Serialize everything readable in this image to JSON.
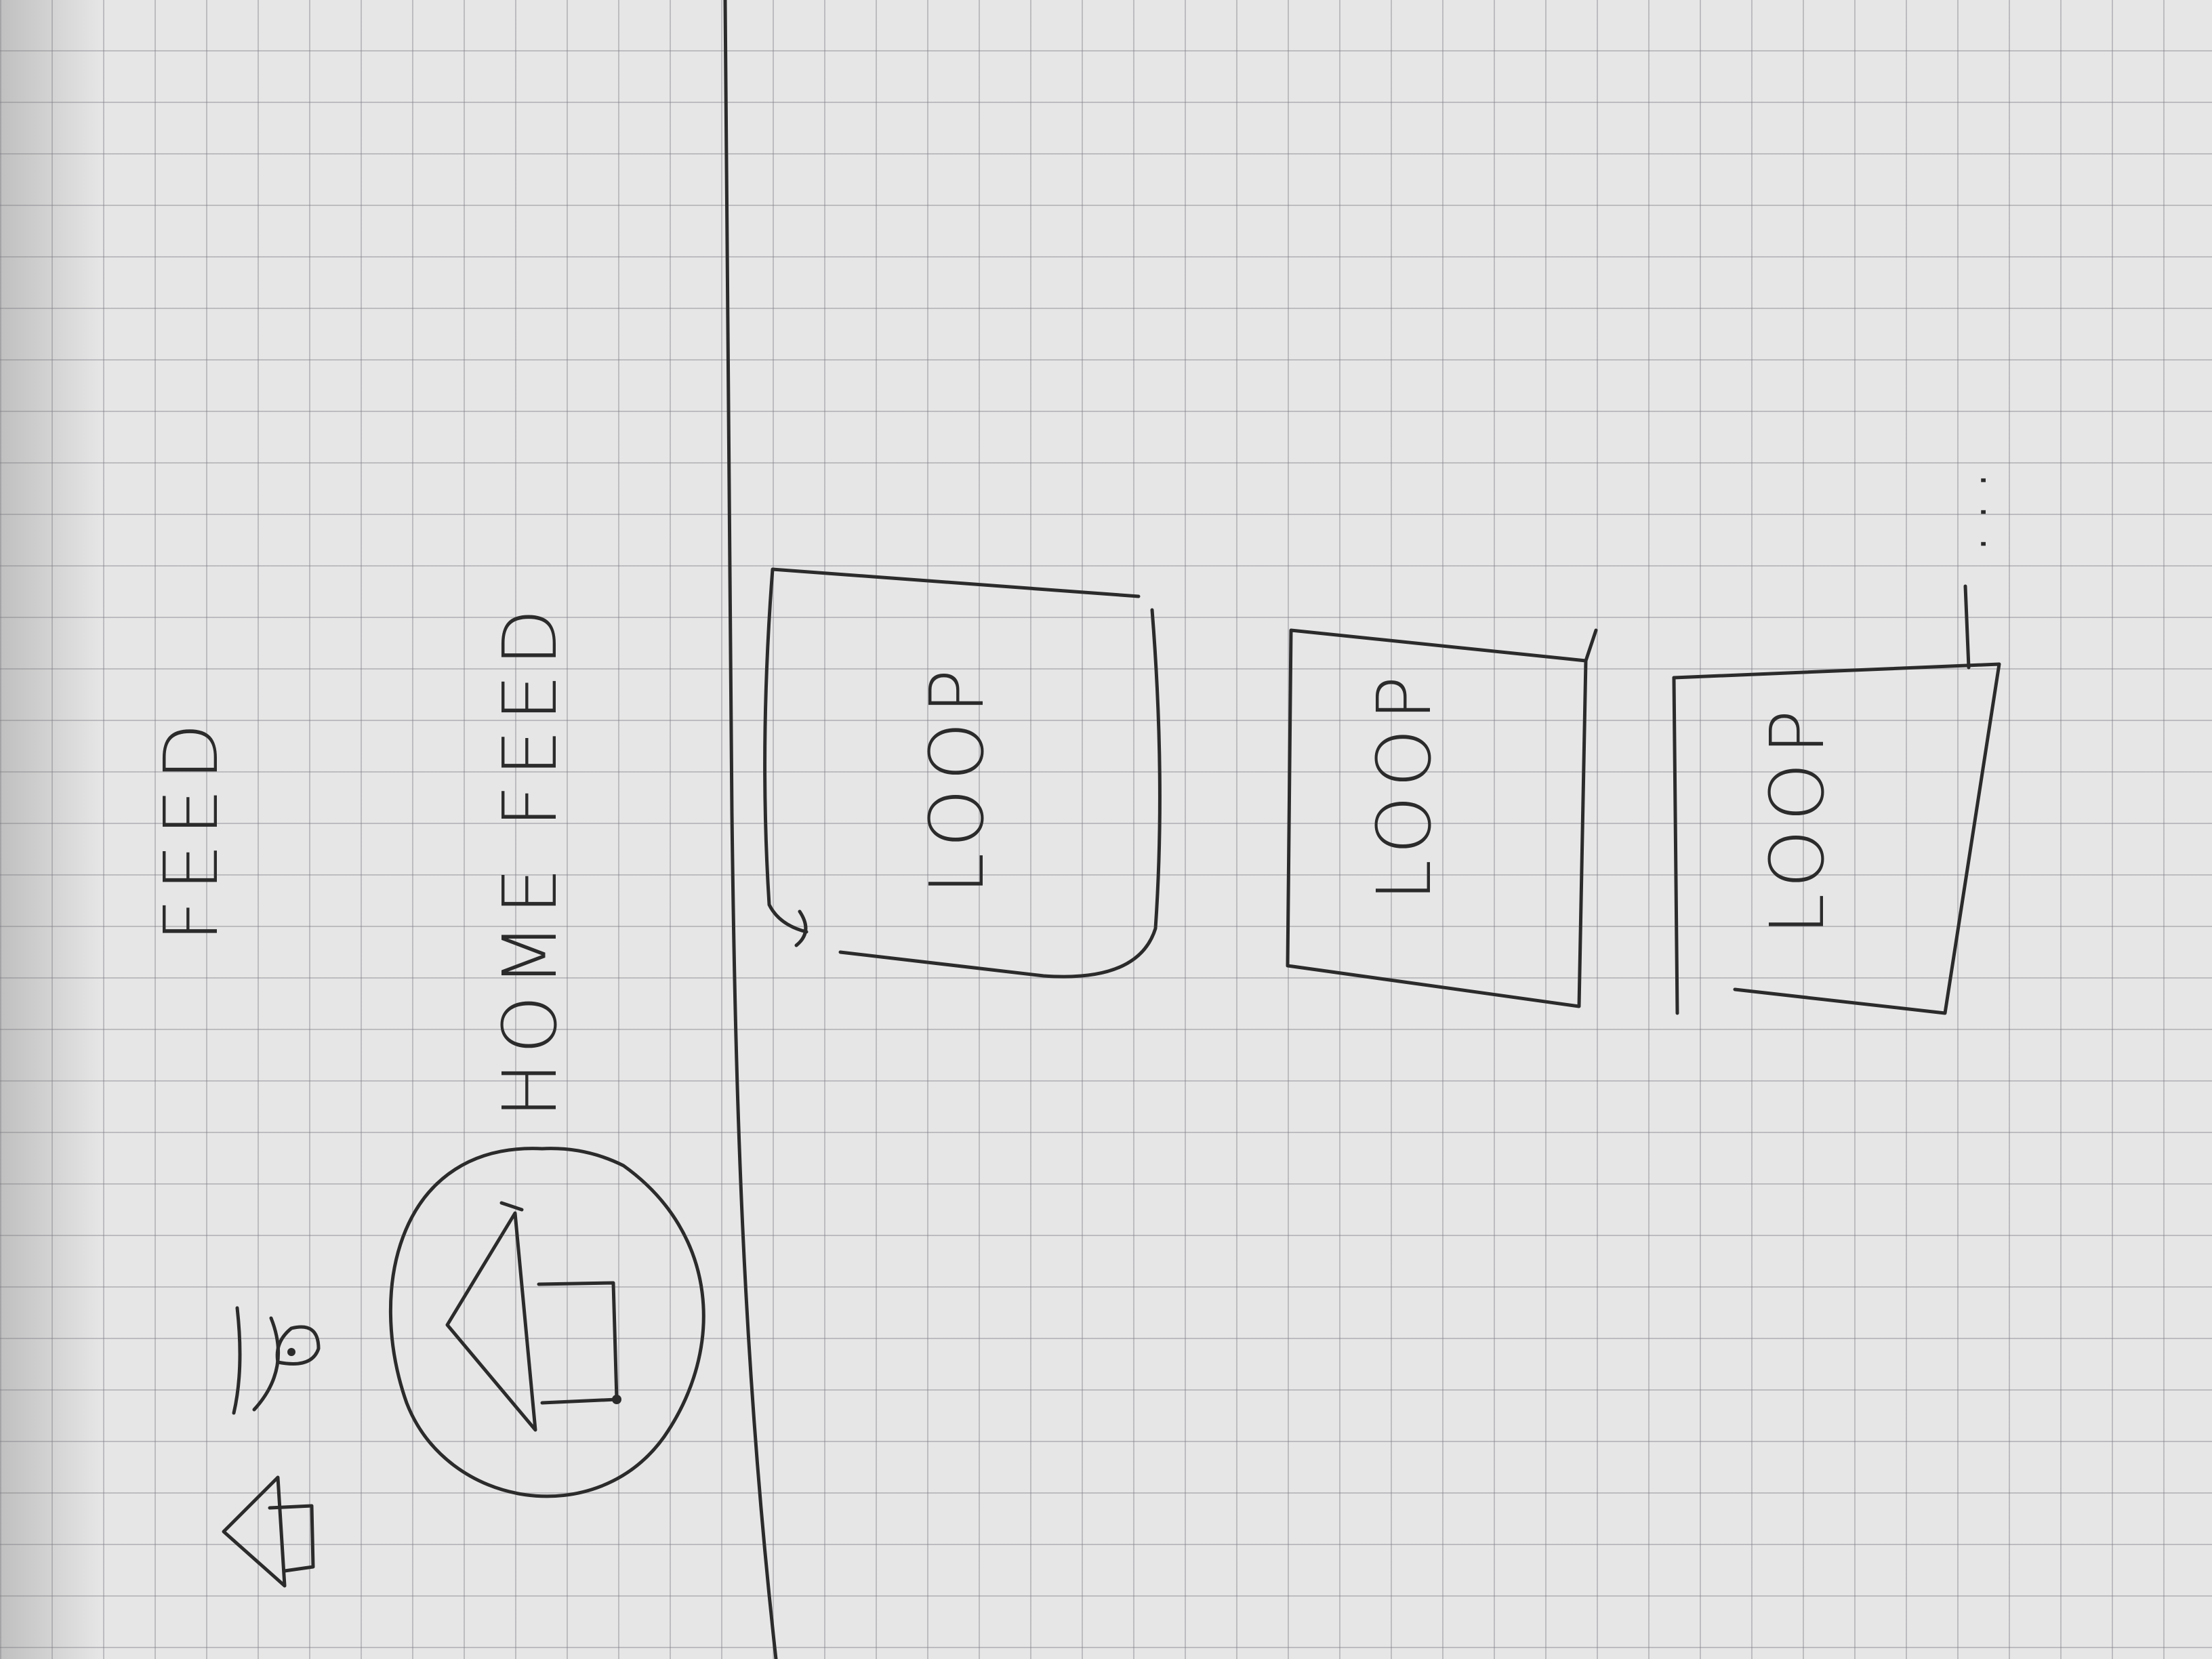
{
  "sketch": {
    "header_title": "FEED",
    "page_title": "HOME FEED",
    "cards": [
      {
        "label": "LOOP"
      },
      {
        "label": "LOOP"
      },
      {
        "label": "LOOP"
      }
    ],
    "more_indicator": "...",
    "icons": {
      "header_left": [
        "home-icon",
        "eye-icon"
      ],
      "page": "home-icon-circled"
    }
  }
}
